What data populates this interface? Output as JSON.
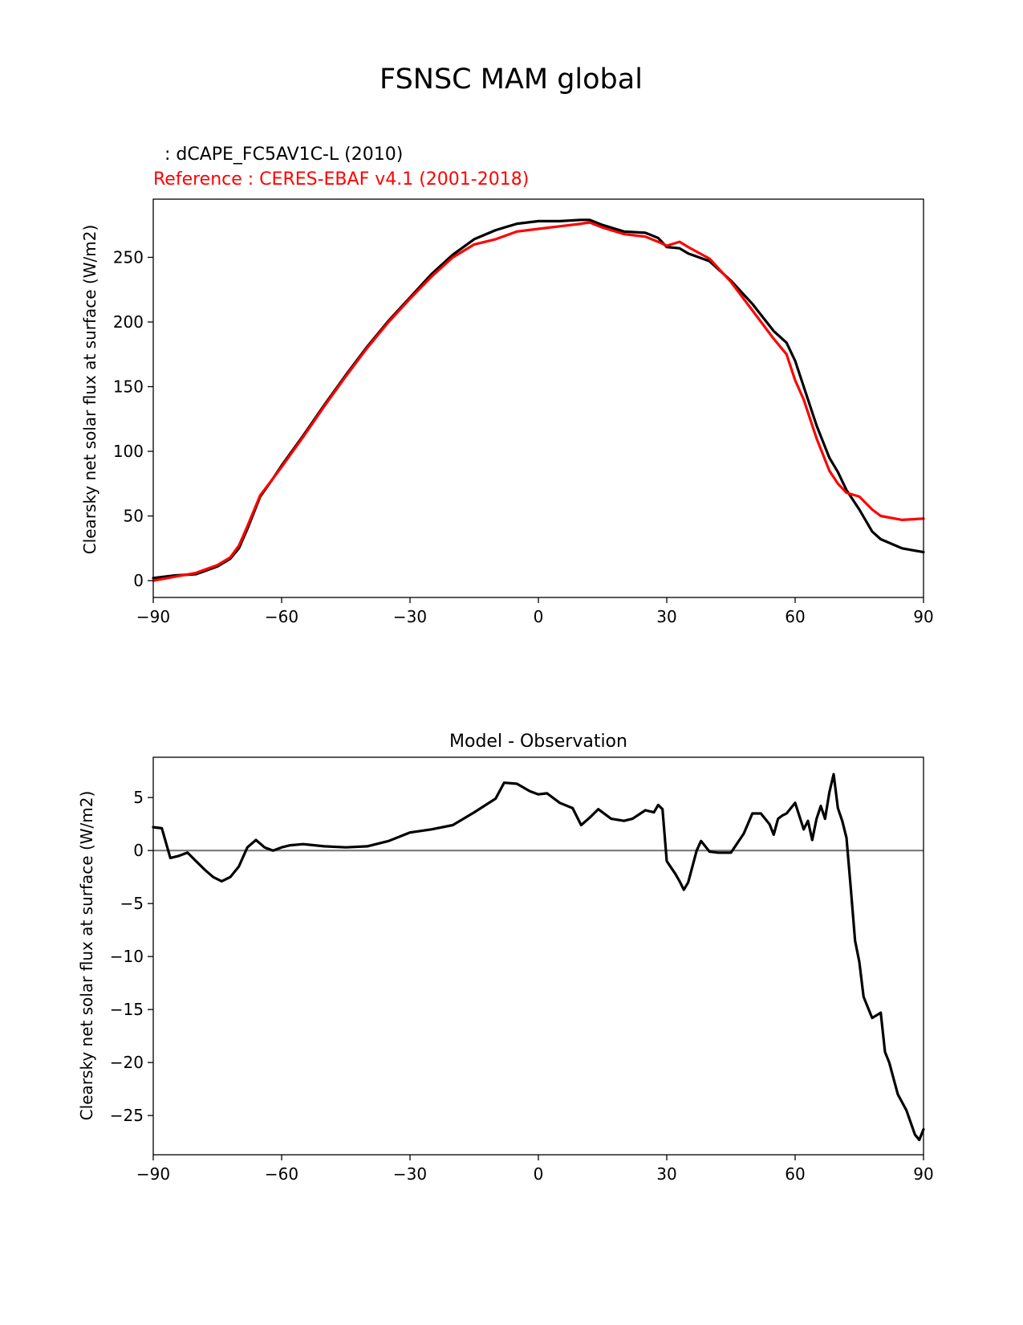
{
  "figure": {
    "title": "FSNSC MAM global"
  },
  "chart_data": [
    {
      "type": "line",
      "test_label": "  : dCAPE_FC5AV1C-L (2010)",
      "ref_label": "Reference : CERES-EBAF v4.1 (2001-2018)",
      "title": "",
      "xlabel": "",
      "ylabel": "Clearsky net solar flux at surface (W/m2)",
      "xlim": [
        -90,
        90
      ],
      "ylim": [
        -13,
        295
      ],
      "xticks": [
        -90,
        -60,
        -30,
        0,
        30,
        60,
        90
      ],
      "xtick_labels": [
        "−90",
        "−60",
        "−30",
        "0",
        "30",
        "60",
        "90"
      ],
      "yticks": [
        0,
        50,
        100,
        150,
        200,
        250
      ],
      "ytick_labels": [
        "0",
        "50",
        "100",
        "150",
        "200",
        "250"
      ],
      "x": [
        -90,
        -85,
        -80,
        -75,
        -72,
        -70,
        -68,
        -65,
        -62,
        -60,
        -55,
        -50,
        -45,
        -40,
        -35,
        -30,
        -25,
        -20,
        -15,
        -10,
        -5,
        0,
        5,
        10,
        12,
        15,
        20,
        25,
        28,
        30,
        33,
        35,
        40,
        45,
        50,
        55,
        58,
        60,
        62,
        65,
        68,
        70,
        72,
        75,
        78,
        80,
        85,
        90
      ],
      "series": [
        {
          "name": "test",
          "color": "#000000",
          "values": [
            2,
            4,
            5,
            11,
            17,
            25,
            40,
            65,
            79,
            89,
            112,
            136,
            159,
            181,
            201,
            219,
            237,
            252,
            264,
            271,
            276,
            278,
            278,
            279,
            279,
            275,
            270,
            269,
            265,
            258,
            257,
            253,
            247,
            232,
            214,
            193,
            184,
            170,
            150,
            120,
            95,
            84,
            70,
            55,
            38,
            32,
            25,
            22
          ]
        },
        {
          "name": "reference",
          "color": "#ff0000",
          "values": [
            0,
            3,
            6,
            12,
            18,
            27,
            42,
            66,
            79,
            88,
            111,
            135,
            158,
            180,
            200,
            218,
            235,
            250,
            260,
            264,
            270,
            272,
            274,
            276,
            277,
            273,
            268,
            266,
            262,
            259,
            262,
            258,
            249,
            231,
            209,
            187,
            175,
            155,
            140,
            110,
            85,
            75,
            68,
            65,
            55,
            50,
            47,
            48
          ]
        }
      ]
    },
    {
      "type": "line",
      "title": "Model - Observation",
      "xlabel": "",
      "ylabel": "Clearsky net solar flux at surface (W/m2)",
      "xlim": [
        -90,
        90
      ],
      "ylim": [
        -28.7,
        8.8
      ],
      "xticks": [
        -90,
        -60,
        -30,
        0,
        30,
        60,
        90
      ],
      "xtick_labels": [
        "−90",
        "−60",
        "−30",
        "0",
        "30",
        "60",
        "90"
      ],
      "yticks": [
        5,
        0,
        -5,
        -10,
        -15,
        -20,
        -25
      ],
      "ytick_labels": [
        "5",
        "0",
        "−5",
        "−10",
        "−15",
        "−20",
        "−25"
      ],
      "zero_line_color": "#808080",
      "x": [
        -90,
        -88,
        -86,
        -84,
        -82,
        -80,
        -78,
        -76,
        -74,
        -72,
        -70,
        -68,
        -66,
        -64,
        -62,
        -60,
        -58,
        -55,
        -50,
        -45,
        -40,
        -35,
        -30,
        -25,
        -20,
        -15,
        -10,
        -8,
        -5,
        -2,
        0,
        2,
        5,
        8,
        10,
        12,
        14,
        17,
        20,
        22,
        25,
        27,
        28,
        29,
        30,
        32,
        33,
        34,
        35,
        37,
        38,
        40,
        42,
        45,
        48,
        50,
        52,
        54,
        55,
        56,
        57,
        58,
        60,
        62,
        63,
        64,
        65,
        66,
        67,
        68,
        69,
        70,
        71,
        72,
        73,
        74,
        75,
        76,
        78,
        80,
        81,
        82,
        84,
        86,
        88,
        89,
        90
      ],
      "values": [
        2.2,
        2.1,
        -0.7,
        -0.5,
        -0.2,
        -1.0,
        -1.8,
        -2.5,
        -2.9,
        -2.5,
        -1.5,
        0.3,
        1.0,
        0.3,
        0.0,
        0.3,
        0.5,
        0.6,
        0.4,
        0.3,
        0.4,
        0.9,
        1.7,
        2.0,
        2.4,
        3.6,
        4.9,
        6.4,
        6.3,
        5.6,
        5.3,
        5.4,
        4.5,
        4.0,
        2.4,
        3.1,
        3.9,
        3.0,
        2.8,
        3.0,
        3.8,
        3.6,
        4.3,
        3.9,
        -1.0,
        -2.2,
        -2.9,
        -3.7,
        -3.0,
        0.0,
        0.9,
        -0.1,
        -0.2,
        -0.2,
        1.6,
        3.5,
        3.5,
        2.5,
        1.5,
        3.0,
        3.3,
        3.5,
        4.5,
        2.0,
        2.8,
        1.0,
        3.0,
        4.2,
        3.0,
        5.5,
        7.2,
        4.0,
        2.8,
        1.2,
        -3.5,
        -8.5,
        -10.5,
        -13.8,
        -15.8,
        -15.3,
        -19.0,
        -20.0,
        -23.0,
        -24.5,
        -26.8,
        -27.3,
        -26.3
      ]
    }
  ]
}
